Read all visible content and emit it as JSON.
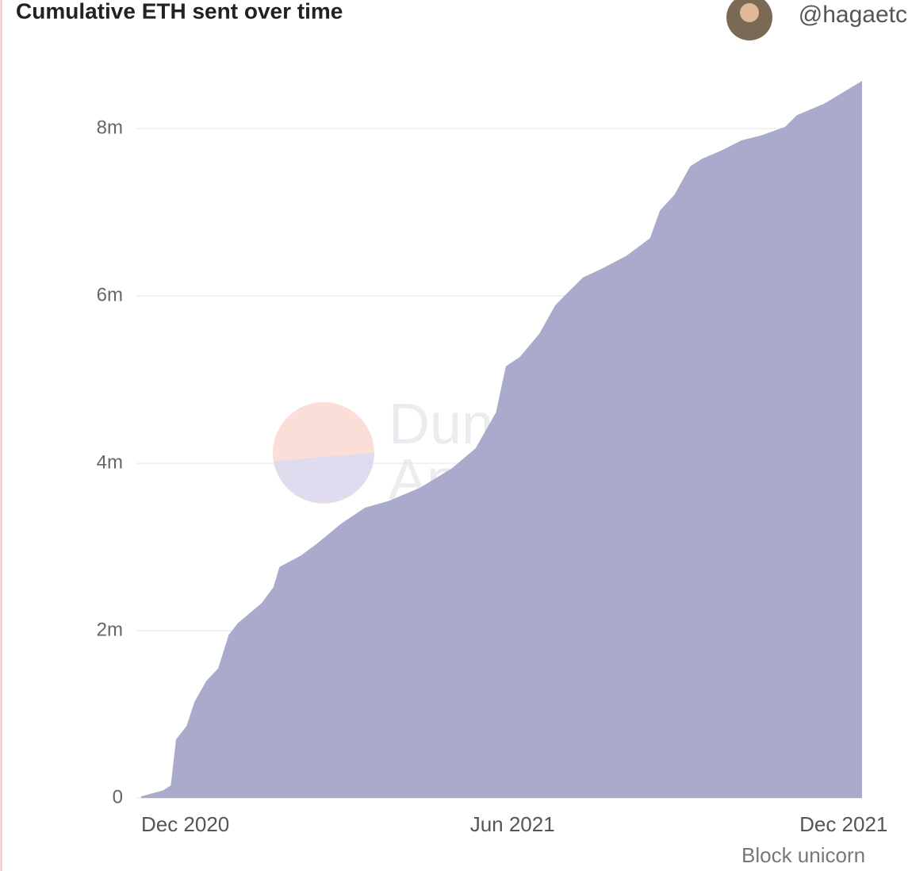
{
  "chart_data": {
    "type": "area",
    "title": "Cumulative ETH sent over time",
    "author": "@hagaetc",
    "watermark": [
      "Dune",
      "Analytics"
    ],
    "footer": "Block unicorn",
    "color": "#aaaacc",
    "grid": true,
    "x": [
      2020.85,
      2020.883,
      2020.895,
      2020.903,
      2020.919,
      2020.931,
      2020.949,
      2020.967,
      2020.983,
      2020.997,
      2021.033,
      2021.051,
      2021.06,
      2021.093,
      2021.117,
      2021.154,
      2021.19,
      2021.226,
      2021.274,
      2021.322,
      2021.358,
      2021.389,
      2021.404,
      2021.425,
      2021.455,
      2021.479,
      2021.503,
      2021.521,
      2021.551,
      2021.587,
      2021.623,
      2021.638,
      2021.66,
      2021.684,
      2021.702,
      2021.732,
      2021.762,
      2021.792,
      2021.828,
      2021.846,
      2021.888,
      2021.945
    ],
    "values": [
      20000,
      90000,
      150000,
      700000,
      860000,
      1150000,
      1400000,
      1550000,
      1950000,
      2090000,
      2330000,
      2520000,
      2760000,
      2900000,
      3040000,
      3280000,
      3470000,
      3550000,
      3710000,
      3940000,
      4180000,
      4610000,
      5160000,
      5270000,
      5550000,
      5890000,
      6080000,
      6220000,
      6330000,
      6480000,
      6690000,
      7020000,
      7210000,
      7550000,
      7640000,
      7740000,
      7860000,
      7920000,
      8020000,
      8160000,
      8300000,
      8570000
    ],
    "xlim": [
      2020.85,
      2021.945
    ],
    "xticks": [
      {
        "value": 2020.917,
        "label": "Dec 2020"
      },
      {
        "value": 2021.414,
        "label": "Jun 2021"
      },
      {
        "value": 2021.917,
        "label": "Dec 2021"
      }
    ],
    "ylim": [
      0,
      8570000
    ],
    "yticks": [
      0,
      {
        "value": 2000000,
        "label": "2m"
      },
      {
        "value": 4000000,
        "label": "4m"
      },
      {
        "value": 6000000,
        "label": "6m"
      },
      {
        "value": 8000000,
        "label": "8m"
      }
    ]
  }
}
